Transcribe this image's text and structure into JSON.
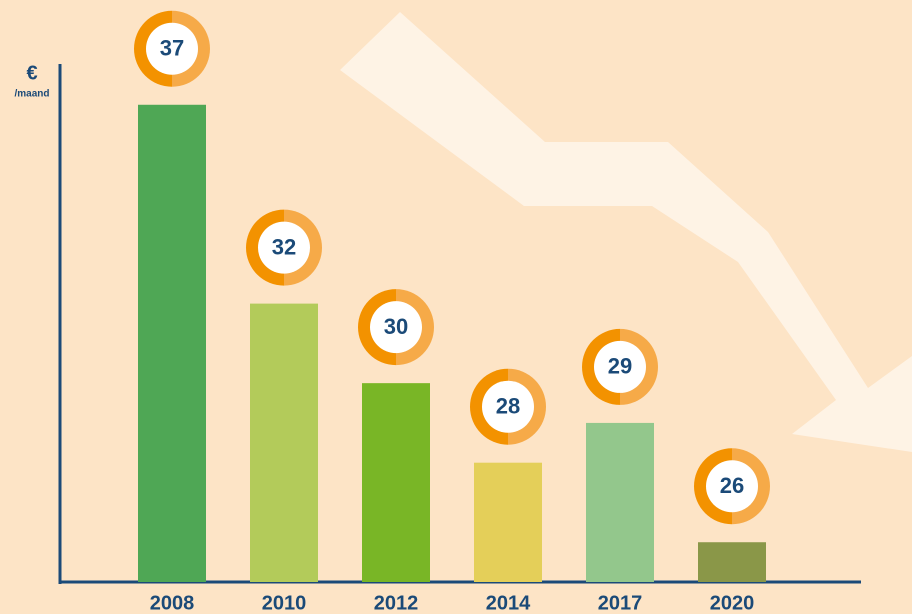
{
  "chart_data": {
    "type": "bar",
    "y_label": "€",
    "y_unit": "/maand",
    "categories": [
      "2008",
      "2010",
      "2012",
      "2014",
      "2017",
      "2020"
    ],
    "values": [
      37,
      32,
      30,
      28,
      29,
      26
    ],
    "colors": [
      "#4fa755",
      "#b3cb5a",
      "#79b626",
      "#e4cf59",
      "#93c78c",
      "#8a9748"
    ],
    "ylim": [
      25,
      38
    ]
  }
}
